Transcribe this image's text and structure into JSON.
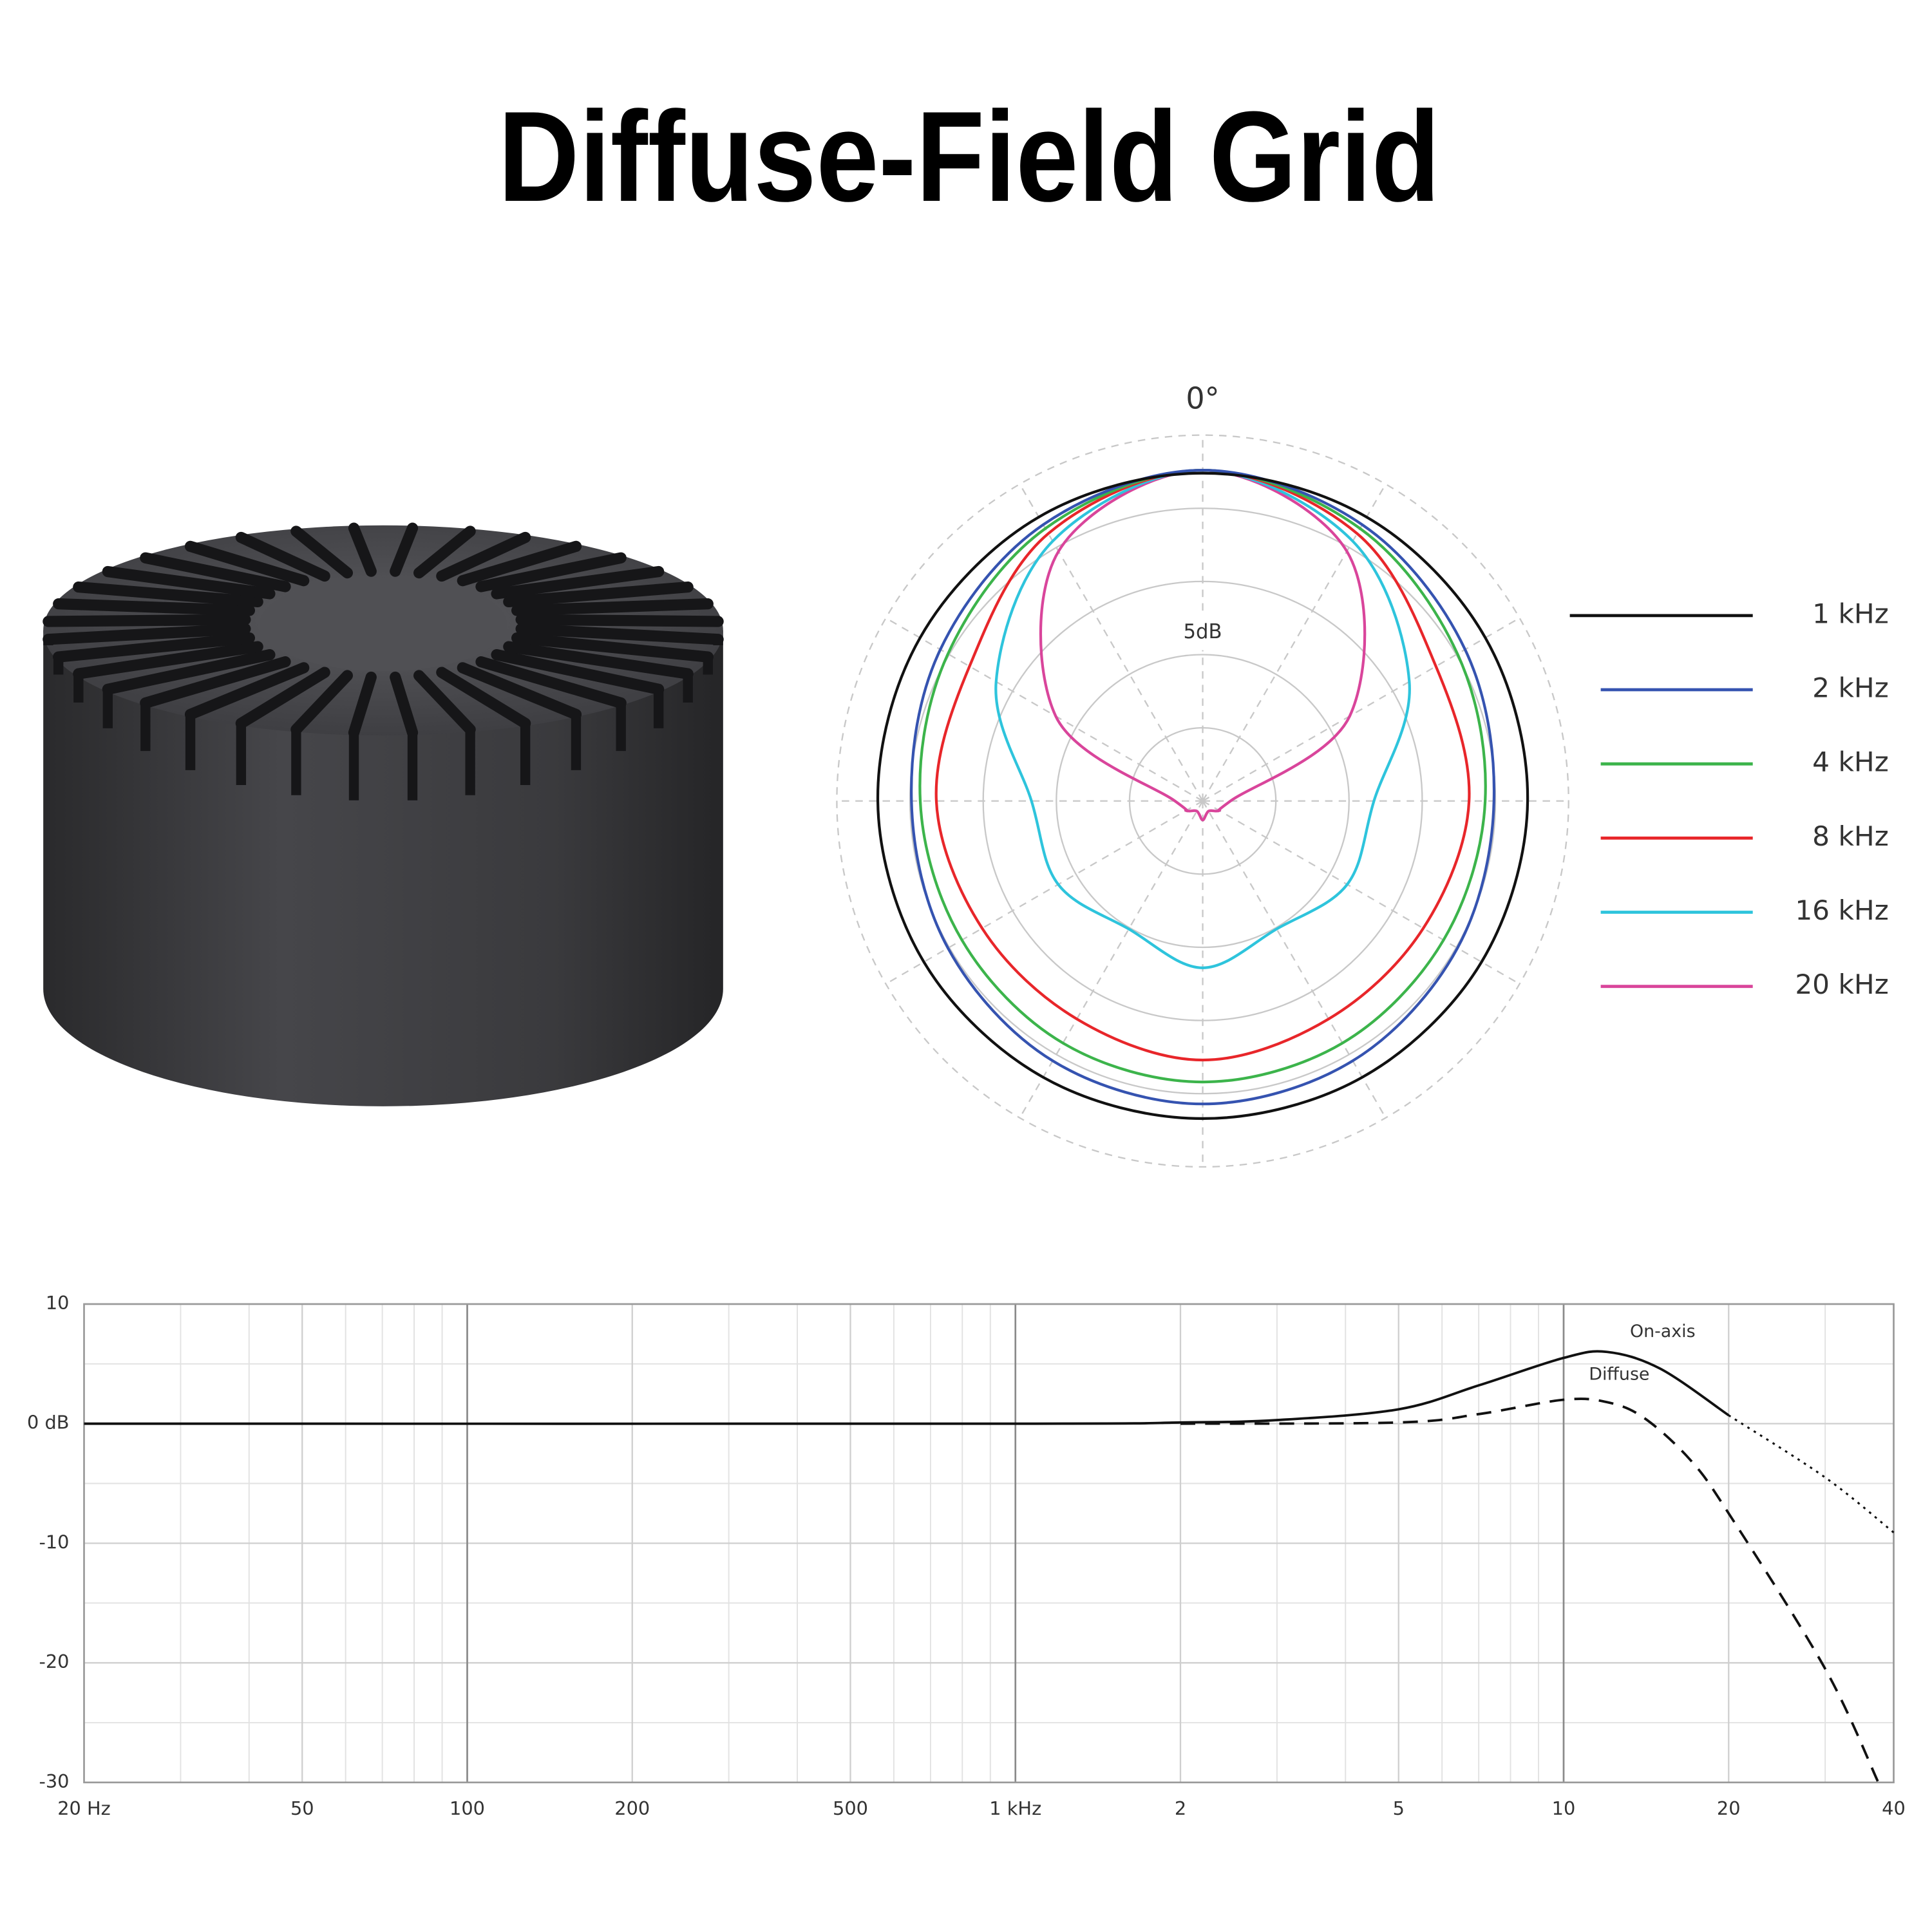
{
  "title": "Diffuse-Field Grid",
  "chart_data": [
    {
      "type": "polar",
      "angle_label": "0°",
      "r_label": "5dB",
      "rlim": [
        -25,
        0
      ],
      "rticks": [
        -20,
        -15,
        -10,
        -5,
        0
      ],
      "angles": [
        0,
        30,
        60,
        90,
        120,
        150,
        180,
        210,
        240,
        270,
        300,
        330
      ],
      "series": [
        {
          "name": "1 kHz",
          "color": "#111111",
          "values": [
            -2.6,
            -2.6,
            -2.7,
            -2.8,
            -3.0,
            -3.2,
            -3.3,
            -3.2,
            -3.0,
            -2.8,
            -2.7,
            -2.6
          ]
        },
        {
          "name": "2 kHz",
          "color": "#3553b0",
          "values": [
            -2.4,
            -3.2,
            -4.3,
            -5.1,
            -4.9,
            -4.5,
            -4.3,
            -4.5,
            -4.9,
            -5.1,
            -4.3,
            -3.2
          ]
        },
        {
          "name": "4 kHz",
          "color": "#3cb44b",
          "values": [
            -2.4,
            -3.5,
            -4.9,
            -5.7,
            -6.0,
            -5.9,
            -5.8,
            -5.9,
            -6.0,
            -5.7,
            -4.9,
            -3.5
          ]
        },
        {
          "name": "8 kHz",
          "color": "#e8262a",
          "values": [
            -2.4,
            -3.9,
            -6.6,
            -6.8,
            -7.6,
            -7.8,
            -7.3,
            -7.8,
            -7.6,
            -6.8,
            -6.6,
            -3.9
          ]
        },
        {
          "name": "16 kHz",
          "color": "#2ec4dc",
          "values": [
            -2.4,
            -4.5,
            -8.7,
            -13.3,
            -13.6,
            -14.9,
            -13.6,
            -14.9,
            -13.6,
            -13.3,
            -8.7,
            -4.5
          ]
        },
        {
          "name": "20 kHz",
          "color": "#d9459b",
          "values": [
            -2.4,
            -5.3,
            -13.4,
            -23.1,
            -23.7,
            -24.2,
            -23.7,
            -24.2,
            -23.7,
            -23.1,
            -13.4,
            -5.3
          ]
        }
      ]
    },
    {
      "type": "line",
      "log_x": true,
      "xlim": [
        20,
        40000
      ],
      "ylim": [
        -30,
        10
      ],
      "xticks": [
        {
          "value": 20,
          "label": "20 Hz"
        },
        50,
        100,
        200,
        500,
        {
          "value": 1000,
          "label": "1 kHz"
        },
        {
          "value": 2000,
          "label": "2"
        },
        {
          "value": 5000,
          "label": "5"
        },
        {
          "value": 10000,
          "label": "10"
        },
        {
          "value": 20000,
          "label": "20"
        },
        {
          "value": 40000,
          "label": "40"
        }
      ],
      "yticks": [
        -30,
        -20,
        -10,
        {
          "value": 0,
          "label": "0 dB"
        },
        10
      ],
      "major_grid_x": [
        100,
        1000,
        10000
      ],
      "xticks_minor": [
        30,
        40,
        60,
        70,
        80,
        90,
        300,
        400,
        600,
        700,
        800,
        900,
        3000,
        4000,
        6000,
        7000,
        8000,
        9000,
        30000
      ],
      "yticks_minor": [
        -25,
        -15,
        -5,
        5
      ],
      "series": [
        {
          "name": "On-axis",
          "color": "#111111",
          "dash": "solid",
          "x": [
            20,
            1000,
            2000,
            3000,
            5000,
            7000,
            10000,
            12000,
            15000,
            20000
          ],
          "values": [
            0,
            0,
            0.1,
            0.3,
            1.2,
            3.2,
            5.5,
            6.0,
            4.6,
            0.7
          ],
          "extension": {
            "dash": "dotted",
            "x": [
              20000,
              30000,
              40000
            ],
            "values": [
              0.7,
              -4.5,
              -9.1
            ]
          }
        },
        {
          "name": "Diffuse",
          "color": "#111111",
          "dash": "dashed",
          "x": [
            2000,
            5000,
            7000,
            10000,
            12000,
            14000,
            17000,
            20000,
            30000,
            37500
          ],
          "values": [
            0,
            0.1,
            0.8,
            2.0,
            1.8,
            0.5,
            -3,
            -7.5,
            -20.5,
            -30
          ]
        }
      ]
    }
  ]
}
